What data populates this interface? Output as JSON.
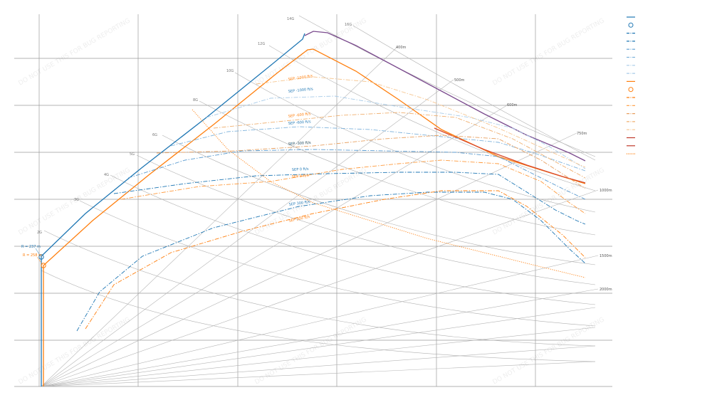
{
  "chart_data": {
    "type": "line",
    "title": "",
    "xlabel": "",
    "ylabel": "",
    "grid": true,
    "legend_placement": "top-right",
    "watermark": "DO NOT USE THIS FOR BUG REPORTING",
    "g_labels": [
      "14G",
      "16G",
      "12G",
      "10G",
      "8G",
      "6G",
      "5G",
      "4G",
      "3G",
      "2G"
    ],
    "radius_labels": [
      "400m",
      "500m",
      "600m",
      "750m",
      "1000m",
      "1500m",
      "2000m"
    ],
    "start_points": [
      {
        "label": "R = 237 m",
        "color": "#1f77b4"
      },
      {
        "label": "R = 258 m",
        "color": "#ff7f0e"
      }
    ],
    "sep_labels": [
      {
        "text": "SEP -1000 ft/s",
        "color": "#ff7f0e"
      },
      {
        "text": "SEP -1000 ft/s",
        "color": "#1f77b4"
      },
      {
        "text": "SEP -600 ft/s",
        "color": "#ff7f0e"
      },
      {
        "text": "SEP -600 ft/s",
        "color": "#1f77b4"
      },
      {
        "text": "SEP -300 ft/s",
        "color": "#ff7f0e"
      },
      {
        "text": "SEP -300 ft/s",
        "color": "#1f77b4"
      },
      {
        "text": "SEP 0 ft/s",
        "color": "#1f77b4"
      },
      {
        "text": "SEP 0 ft/s",
        "color": "#ff7f0e"
      },
      {
        "text": "SEP 300 ft/s",
        "color": "#1f77b4"
      },
      {
        "text": "SEP 300 ft/s",
        "color": "#ff7f0e"
      }
    ],
    "series": [
      {
        "style": "solid",
        "color": "#1f77b4",
        "role": "blue-limit"
      },
      {
        "style": "solid",
        "color": "#ff7f0e",
        "role": "orange-limit"
      },
      {
        "style": "solid",
        "color": "#7b4b8e",
        "role": "structural-limit"
      },
      {
        "style": "solid",
        "color": "#d94a2b",
        "role": "structural-limit-2"
      },
      {
        "style": "dashdot",
        "color": "#1f77b4",
        "role": "blue-sep-300"
      },
      {
        "style": "dashdot",
        "color": "#1f77b4",
        "role": "blue-sep-0"
      },
      {
        "style": "dashdot",
        "color": "#5a9bd0",
        "role": "blue-sep-minus300"
      },
      {
        "style": "dashdot",
        "color": "#7fb3dc",
        "role": "blue-sep-minus600"
      },
      {
        "style": "dashdot",
        "color": "#a8cbe8",
        "role": "blue-sep-minus1000"
      },
      {
        "style": "dashdot",
        "color": "#ff7f0e",
        "role": "orange-sep-300"
      },
      {
        "style": "dashdot",
        "color": "#ff9a3c",
        "role": "orange-sep-0"
      },
      {
        "style": "dashdot",
        "color": "#e8a060",
        "role": "orange-sep-minus300"
      },
      {
        "style": "dashdot",
        "color": "#f0b070",
        "role": "orange-sep-minus600"
      },
      {
        "style": "dashdot",
        "color": "#f6c690",
        "role": "orange-sep-minus1000"
      },
      {
        "style": "dotted",
        "color": "#ff7f0e",
        "role": "orange-dotted"
      }
    ],
    "legend": {
      "entries": [
        {
          "style": "solid",
          "color": "#1f77b4"
        },
        {
          "style": "circle",
          "color": "#1f77b4"
        },
        {
          "style": "dashdot",
          "color": "#1f77b4"
        },
        {
          "style": "dashdot",
          "color": "#1f77b4"
        },
        {
          "style": "dashdot",
          "color": "#5a9bd0"
        },
        {
          "style": "dashdot",
          "color": "#7fb3dc"
        },
        {
          "style": "dashdot",
          "color": "#a8cbe8"
        },
        {
          "style": "dashdot",
          "color": "#a8cbe8"
        },
        {
          "style": "solid",
          "color": "#ff7f0e"
        },
        {
          "style": "circle",
          "color": "#ff7f0e"
        },
        {
          "style": "dashdot",
          "color": "#ff7f0e"
        },
        {
          "style": "dashdot",
          "color": "#ff9a3c"
        },
        {
          "style": "dashdot",
          "color": "#e8a060"
        },
        {
          "style": "dashdot",
          "color": "#f0b070"
        },
        {
          "style": "dashdot",
          "color": "#f6c690"
        },
        {
          "style": "solid",
          "color": "#c0392b"
        },
        {
          "style": "solid",
          "color": "#c0392b"
        },
        {
          "style": "dotted",
          "color": "#ff7f0e"
        }
      ]
    }
  }
}
